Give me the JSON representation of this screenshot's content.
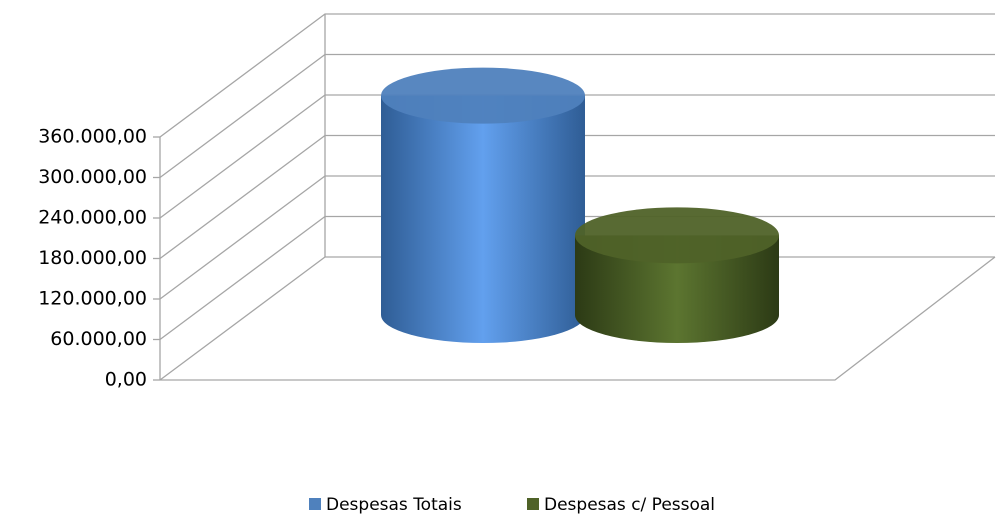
{
  "chart_data": {
    "type": "cylinder3d",
    "categories": [
      null
    ],
    "series": [
      {
        "name": "Despesas Totais",
        "color": "#4f81bd",
        "values": [
          325000
        ]
      },
      {
        "name": "Despesas c/ Pessoal",
        "color": "#4f6228",
        "values": [
          118000
        ]
      }
    ],
    "ylim": [
      0,
      360000
    ],
    "yticks": [
      {
        "value": 0,
        "label": "0,00"
      },
      {
        "value": 60000,
        "label": "60.000,00"
      },
      {
        "value": 120000,
        "label": "120.000,00"
      },
      {
        "value": 180000,
        "label": "180.000,00"
      },
      {
        "value": 240000,
        "label": "240.000,00"
      },
      {
        "value": 300000,
        "label": "300.000,00"
      },
      {
        "value": 360000,
        "label": "360.000,00"
      }
    ],
    "grid": true,
    "legend": "bottom"
  }
}
